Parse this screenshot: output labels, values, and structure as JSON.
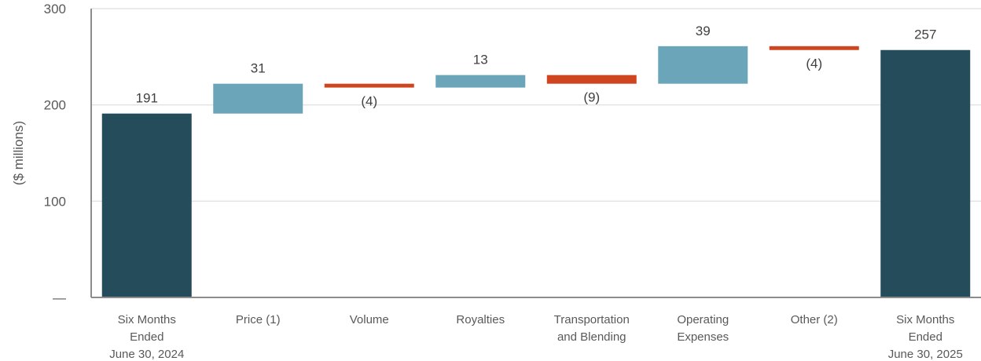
{
  "chart_data": {
    "type": "waterfall",
    "ylabel": "($ millions)",
    "ylim": [
      0,
      300
    ],
    "y_ticks": [
      {
        "value": 0,
        "label": "—"
      },
      {
        "value": 100,
        "label": "100"
      },
      {
        "value": 200,
        "label": "200"
      },
      {
        "value": 300,
        "label": "300"
      }
    ],
    "grid": true,
    "colors": {
      "total": "#254c5a",
      "increase": "#6aa5b9",
      "decrease": "#cf4520",
      "grid": "#e3e3e3",
      "axis": "#8c8c8c"
    },
    "steps": [
      {
        "lines": [
          "Six Months",
          "Ended",
          "June 30, 2024"
        ],
        "kind": "total",
        "value": 191,
        "label": "191"
      },
      {
        "lines": [
          "Price (1)"
        ],
        "kind": "increase",
        "value": 31,
        "label": "31"
      },
      {
        "lines": [
          "Volume"
        ],
        "kind": "decrease",
        "value": -4,
        "label": "(4)"
      },
      {
        "lines": [
          "Royalties"
        ],
        "kind": "increase",
        "value": 13,
        "label": "13"
      },
      {
        "lines": [
          "Transportation",
          "and Blending"
        ],
        "kind": "decrease",
        "value": -9,
        "label": "(9)"
      },
      {
        "lines": [
          "Operating",
          "Expenses"
        ],
        "kind": "increase",
        "value": 39,
        "label": "39"
      },
      {
        "lines": [
          "Other (2)"
        ],
        "kind": "decrease",
        "value": -4,
        "label": "(4)"
      },
      {
        "lines": [
          "Six Months",
          "Ended",
          "June 30, 2025"
        ],
        "kind": "total",
        "value": 257,
        "label": "257"
      }
    ]
  }
}
